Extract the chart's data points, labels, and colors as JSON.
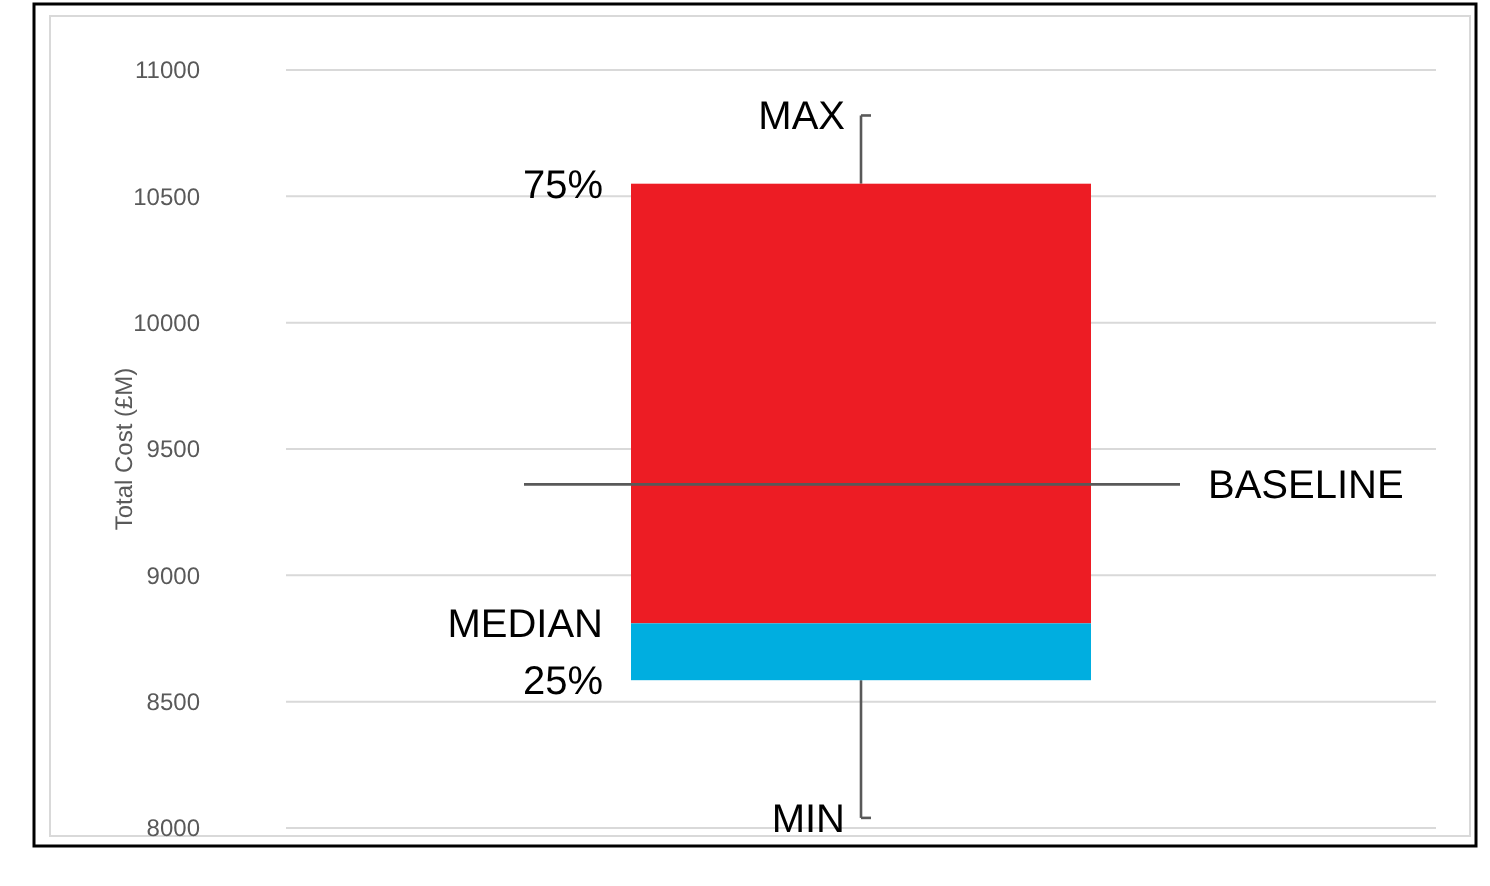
{
  "chart_data": {
    "type": "box",
    "ylabel": "Total Cost (£M)",
    "categories": [
      null
    ],
    "series": [
      {
        "colors": [
          [
            "#ed1c24",
            "#00aee0"
          ]
        ],
        "boxes": [
          {
            "low": 8040,
            "q1": 8585,
            "median": 8810,
            "q3": 10550,
            "high": 10820
          }
        ]
      }
    ],
    "ylim": [
      8000,
      11000
    ],
    "yticks": [
      8000,
      8500,
      9000,
      9500,
      10000,
      10500,
      11000
    ],
    "grid": "y",
    "ref_lines": [
      {
        "axis": "y",
        "value": 9360,
        "label": "BASELINE",
        "color": "#595959"
      }
    ],
    "annotations": [
      "MAX",
      "75%",
      "MEDIAN",
      "25%",
      "MIN"
    ]
  }
}
